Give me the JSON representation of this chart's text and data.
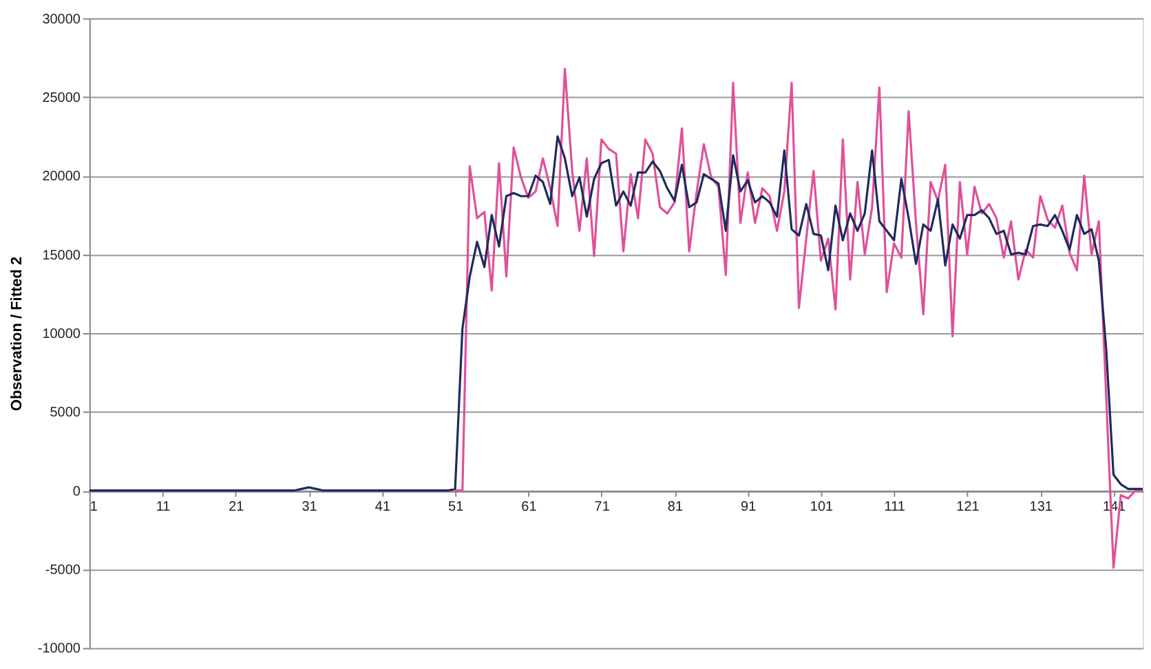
{
  "chart_data": {
    "type": "line",
    "ylabel": "Observation / Fitted 2",
    "x": [
      1,
      2,
      3,
      4,
      5,
      6,
      7,
      8,
      9,
      10,
      11,
      12,
      13,
      14,
      15,
      16,
      17,
      18,
      19,
      20,
      21,
      22,
      23,
      24,
      25,
      26,
      27,
      28,
      29,
      30,
      31,
      32,
      33,
      34,
      35,
      36,
      37,
      38,
      39,
      40,
      41,
      42,
      43,
      44,
      45,
      46,
      47,
      48,
      49,
      50,
      51,
      52,
      53,
      54,
      55,
      56,
      57,
      58,
      59,
      60,
      61,
      62,
      63,
      64,
      65,
      66,
      67,
      68,
      69,
      70,
      71,
      72,
      73,
      74,
      75,
      76,
      77,
      78,
      79,
      80,
      81,
      82,
      83,
      84,
      85,
      86,
      87,
      88,
      89,
      90,
      91,
      92,
      93,
      94,
      95,
      96,
      97,
      98,
      99,
      100,
      101,
      102,
      103,
      104,
      105,
      106,
      107,
      108,
      109,
      110,
      111,
      112,
      113,
      114,
      115,
      116,
      117,
      118,
      119,
      120,
      121,
      122,
      123,
      124,
      125,
      126,
      127,
      128,
      129,
      130,
      131,
      132,
      133,
      134,
      135,
      136,
      137,
      138,
      139,
      140,
      141,
      142,
      143,
      144,
      145
    ],
    "series": [
      {
        "color": "#e0509a",
        "values": [
          null,
          null,
          null,
          null,
          null,
          null,
          null,
          null,
          null,
          null,
          null,
          null,
          null,
          null,
          null,
          null,
          null,
          null,
          null,
          null,
          null,
          null,
          null,
          null,
          null,
          null,
          null,
          null,
          null,
          null,
          null,
          null,
          null,
          null,
          null,
          null,
          null,
          null,
          null,
          null,
          null,
          null,
          null,
          null,
          null,
          null,
          null,
          null,
          null,
          null,
          0,
          0,
          20600,
          17300,
          17700,
          12700,
          20800,
          13600,
          21800,
          19900,
          18600,
          19000,
          21100,
          19200,
          16800,
          26800,
          20300,
          16500,
          21100,
          14900,
          22300,
          21700,
          21400,
          15200,
          20100,
          17300,
          22300,
          21400,
          18000,
          17600,
          18300,
          23000,
          15200,
          18900,
          22000,
          19900,
          19300,
          13700,
          25900,
          17000,
          20200,
          17000,
          19200,
          18700,
          16500,
          19000,
          25900,
          11600,
          16000,
          20300,
          14600,
          16000,
          11500,
          22300,
          13400,
          19600,
          15000,
          18000,
          25600,
          12600,
          15700,
          14800,
          24100,
          17000,
          11200,
          19600,
          18400,
          20700,
          9800,
          19600,
          15000,
          19300,
          17600,
          18200,
          17300,
          14800,
          17100,
          13400,
          15300,
          14800,
          18700,
          17200,
          16700,
          18100,
          15100,
          14000,
          20000,
          15000,
          17100,
          6000,
          -4900,
          -300,
          -500,
          0,
          0
        ]
      },
      {
        "color": "#1f2a5e",
        "values": [
          0,
          0,
          0,
          0,
          0,
          0,
          0,
          0,
          0,
          0,
          0,
          0,
          0,
          0,
          0,
          0,
          0,
          0,
          0,
          0,
          0,
          0,
          0,
          0,
          0,
          0,
          0,
          0,
          0,
          100,
          200,
          100,
          0,
          0,
          0,
          0,
          0,
          0,
          0,
          0,
          0,
          0,
          0,
          0,
          0,
          0,
          0,
          0,
          0,
          0,
          100,
          10300,
          13600,
          15800,
          14200,
          17500,
          15500,
          18700,
          18900,
          18700,
          18700,
          20000,
          19600,
          18200,
          22500,
          21100,
          18700,
          19900,
          17400,
          19800,
          20800,
          21000,
          18100,
          19000,
          18100,
          20200,
          20200,
          20900,
          20300,
          19200,
          18400,
          20700,
          18000,
          18300,
          20100,
          19800,
          19500,
          16500,
          21300,
          19000,
          19700,
          18300,
          18700,
          18300,
          17400,
          21600,
          16600,
          16200,
          18200,
          16300,
          16200,
          14000,
          18100,
          15900,
          17600,
          16500,
          17600,
          21600,
          17100,
          16500,
          15900,
          19800,
          17300,
          14400,
          16900,
          16500,
          18500,
          14300,
          16900,
          16000,
          17500,
          17500,
          17800,
          17300,
          16300,
          16500,
          15000,
          15100,
          15000,
          16800,
          16900,
          16800,
          17500,
          16500,
          15300,
          17500,
          16300,
          16600,
          14600,
          9000,
          1000,
          400,
          100,
          100,
          100
        ]
      }
    ],
    "xlim": [
      1,
      145
    ],
    "xticks": [
      1,
      11,
      21,
      31,
      41,
      51,
      61,
      71,
      81,
      91,
      101,
      111,
      121,
      131,
      141
    ],
    "ylim": [
      -10000,
      30000
    ],
    "yticks": [
      -10000,
      -5000,
      0,
      5000,
      10000,
      15000,
      20000,
      25000,
      30000
    ],
    "grid": "y",
    "marker": "none",
    "line_style": "solid"
  }
}
